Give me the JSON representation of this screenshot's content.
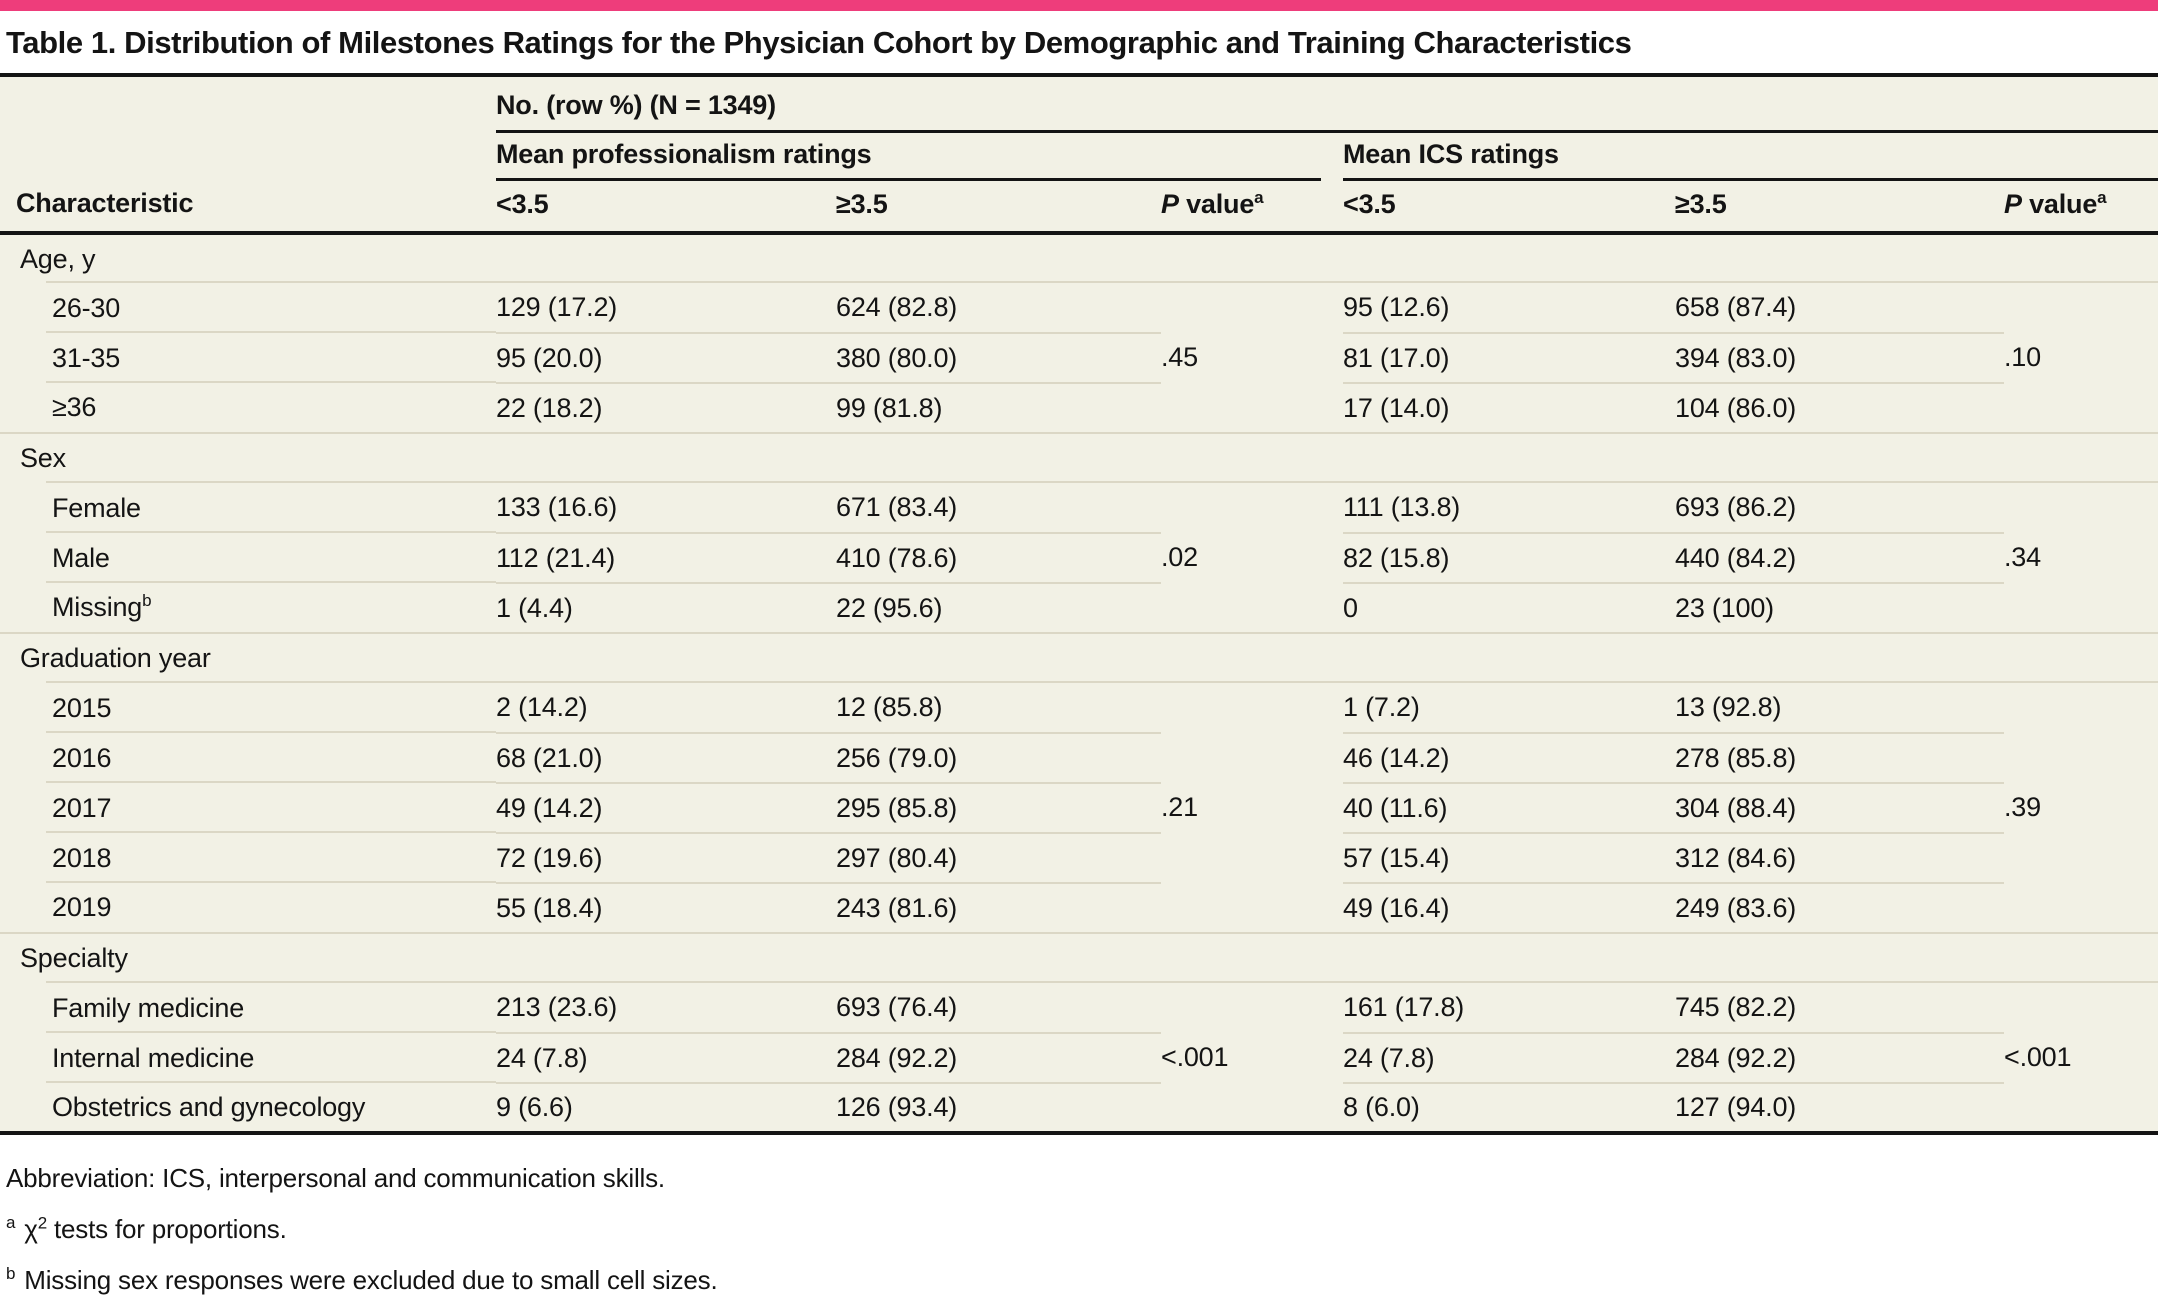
{
  "colors": {
    "accent_pink": "#EE3D7B",
    "table_background": "#F2F1E5",
    "thin_rule": "#DBD7C5",
    "heavy_rule": "#141414"
  },
  "title": "Table 1. Distribution of Milestones Ratings for the Physician Cohort by Demographic and Training Characteristics",
  "header": {
    "col_characteristic": "Characteristic",
    "span_top": "No. (row %) (N = 1349)",
    "group_professionalism": "Mean professionalism ratings",
    "group_ics": "Mean ICS ratings",
    "sub_lt": "<3.5",
    "sub_ge": "≥3.5",
    "p_italic": "P",
    "p_rest": " value",
    "p_sup": "a"
  },
  "sections": [
    {
      "label": "Age, y",
      "p_prof": ".45",
      "p_ics": ".10",
      "rows": [
        {
          "label": "26-30",
          "prof_lt": "129 (17.2)",
          "prof_ge": "624 (82.8)",
          "ics_lt": "95 (12.6)",
          "ics_ge": "658 (87.4)"
        },
        {
          "label": "31-35",
          "prof_lt": "95 (20.0)",
          "prof_ge": "380 (80.0)",
          "ics_lt": "81 (17.0)",
          "ics_ge": "394 (83.0)"
        },
        {
          "label": "≥36",
          "prof_lt": "22 (18.2)",
          "prof_ge": "99 (81.8)",
          "ics_lt": "17 (14.0)",
          "ics_ge": "104 (86.0)"
        }
      ]
    },
    {
      "label": "Sex",
      "p_prof": ".02",
      "p_ics": ".34",
      "rows": [
        {
          "label": "Female",
          "prof_lt": "133 (16.6)",
          "prof_ge": "671 (83.4)",
          "ics_lt": "111 (13.8)",
          "ics_ge": "693 (86.2)"
        },
        {
          "label": "Male",
          "prof_lt": "112 (21.4)",
          "prof_ge": "410 (78.6)",
          "ics_lt": "82 (15.8)",
          "ics_ge": "440 (84.2)"
        },
        {
          "label": "Missing",
          "label_sup": "b",
          "prof_lt": "1 (4.4)",
          "prof_ge": "22 (95.6)",
          "ics_lt": "0",
          "ics_ge": "23 (100)"
        }
      ]
    },
    {
      "label": "Graduation year",
      "p_prof": ".21",
      "p_ics": ".39",
      "rows": [
        {
          "label": "2015",
          "prof_lt": "2 (14.2)",
          "prof_ge": "12 (85.8)",
          "ics_lt": "1 (7.2)",
          "ics_ge": "13 (92.8)"
        },
        {
          "label": "2016",
          "prof_lt": "68 (21.0)",
          "prof_ge": "256 (79.0)",
          "ics_lt": "46 (14.2)",
          "ics_ge": "278 (85.8)"
        },
        {
          "label": "2017",
          "prof_lt": "49 (14.2)",
          "prof_ge": "295 (85.8)",
          "ics_lt": "40 (11.6)",
          "ics_ge": "304 (88.4)"
        },
        {
          "label": "2018",
          "prof_lt": "72 (19.6)",
          "prof_ge": "297 (80.4)",
          "ics_lt": "57 (15.4)",
          "ics_ge": "312 (84.6)"
        },
        {
          "label": "2019",
          "prof_lt": "55 (18.4)",
          "prof_ge": "243 (81.6)",
          "ics_lt": "49 (16.4)",
          "ics_ge": "249 (83.6)"
        }
      ]
    },
    {
      "label": "Specialty",
      "p_prof": "<.001",
      "p_ics": "<.001",
      "rows": [
        {
          "label": "Family medicine",
          "prof_lt": "213 (23.6)",
          "prof_ge": "693 (76.4)",
          "ics_lt": "161 (17.8)",
          "ics_ge": "745 (82.2)"
        },
        {
          "label": "Internal medicine",
          "prof_lt": "24 (7.8)",
          "prof_ge": "284 (92.2)",
          "ics_lt": "24 (7.8)",
          "ics_ge": "284 (92.2)"
        },
        {
          "label": "Obstetrics and gynecology",
          "prof_lt": "9 (6.6)",
          "prof_ge": "126 (93.4)",
          "ics_lt": "8 (6.0)",
          "ics_ge": "127 (94.0)"
        }
      ]
    }
  ],
  "footnotes": {
    "abbreviation": "Abbreviation: ICS, interpersonal and communication skills.",
    "a_marker": "a",
    "a_chi": "χ",
    "a_sup": "2",
    "a_rest": " tests for proportions.",
    "b_marker": "b",
    "b_text": "Missing sex responses were excluded due to small cell sizes."
  }
}
